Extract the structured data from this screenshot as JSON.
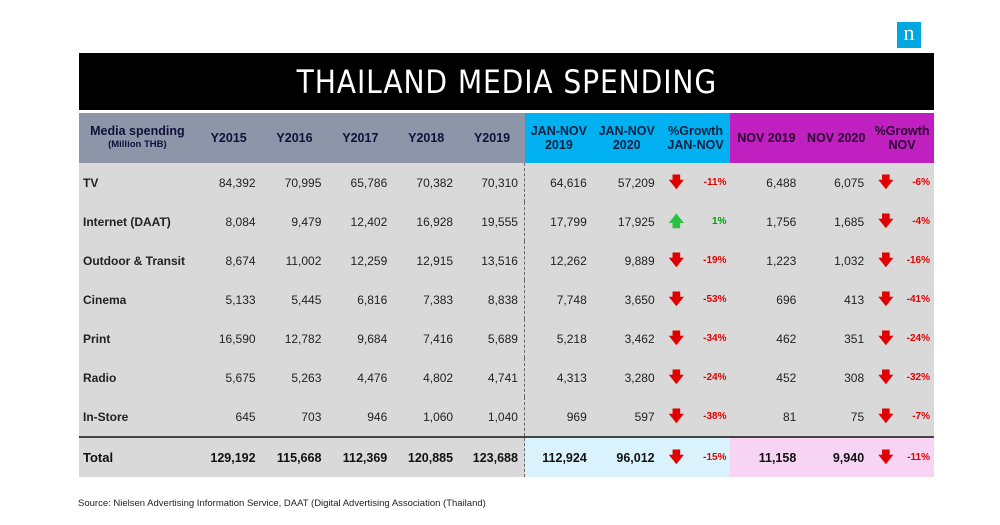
{
  "logo": "n",
  "title": "THAILAND MEDIA SPENDING",
  "header": {
    "media_line1": "Media spending",
    "media_line2": "(Million THB)",
    "y2015": "Y2015",
    "y2016": "Y2016",
    "y2017": "Y2017",
    "y2018": "Y2018",
    "y2019": "Y2019",
    "jn19_1": "JAN-NOV",
    "jn19_2": "2019",
    "jn20_1": "JAN-NOV",
    "jn20_2": "2020",
    "gjn_1": "%Growth",
    "gjn_2": "JAN-NOV",
    "nov19": "NOV 2019",
    "nov20": "NOV 2020",
    "gnov_1": "%Growth",
    "gnov_2": "NOV"
  },
  "rows": [
    {
      "name": "TV",
      "y2015": "84,392",
      "y2016": "70,995",
      "y2017": "65,786",
      "y2018": "70,382",
      "y2019": "70,310",
      "jn2019": "64,616",
      "jn2020": "57,209",
      "g1": "-11%",
      "g1_dir": "down",
      "nov2019": "6,488",
      "nov2020": "6,075",
      "g2": "-6%",
      "g2_dir": "down"
    },
    {
      "name": "Internet (DAAT)",
      "y2015": "8,084",
      "y2016": "9,479",
      "y2017": "12,402",
      "y2018": "16,928",
      "y2019": "19,555",
      "jn2019": "17,799",
      "jn2020": "17,925",
      "g1": "1%",
      "g1_dir": "up",
      "nov2019": "1,756",
      "nov2020": "1,685",
      "g2": "-4%",
      "g2_dir": "down"
    },
    {
      "name": "Outdoor & Transit",
      "y2015": "8,674",
      "y2016": "11,002",
      "y2017": "12,259",
      "y2018": "12,915",
      "y2019": "13,516",
      "jn2019": "12,262",
      "jn2020": "9,889",
      "g1": "-19%",
      "g1_dir": "down",
      "nov2019": "1,223",
      "nov2020": "1,032",
      "g2": "-16%",
      "g2_dir": "down"
    },
    {
      "name": "Cinema",
      "y2015": "5,133",
      "y2016": "5,445",
      "y2017": "6,816",
      "y2018": "7,383",
      "y2019": "8,838",
      "jn2019": "7,748",
      "jn2020": "3,650",
      "g1": "-53%",
      "g1_dir": "down",
      "nov2019": "696",
      "nov2020": "413",
      "g2": "-41%",
      "g2_dir": "down"
    },
    {
      "name": "Print",
      "y2015": "16,590",
      "y2016": "12,782",
      "y2017": "9,684",
      "y2018": "7,416",
      "y2019": "5,689",
      "jn2019": "5,218",
      "jn2020": "3,462",
      "g1": "-34%",
      "g1_dir": "down",
      "nov2019": "462",
      "nov2020": "351",
      "g2": "-24%",
      "g2_dir": "down"
    },
    {
      "name": "Radio",
      "y2015": "5,675",
      "y2016": "5,263",
      "y2017": "4,476",
      "y2018": "4,802",
      "y2019": "4,741",
      "jn2019": "4,313",
      "jn2020": "3,280",
      "g1": "-24%",
      "g1_dir": "down",
      "nov2019": "452",
      "nov2020": "308",
      "g2": "-32%",
      "g2_dir": "down"
    },
    {
      "name": "In-Store",
      "y2015": "645",
      "y2016": "703",
      "y2017": "946",
      "y2018": "1,060",
      "y2019": "1,040",
      "jn2019": "969",
      "jn2020": "597",
      "g1": "-38%",
      "g1_dir": "down",
      "nov2019": "81",
      "nov2020": "75",
      "g2": "-7%",
      "g2_dir": "down"
    }
  ],
  "total": {
    "name": "Total",
    "y2015": "129,192",
    "y2016": "115,668",
    "y2017": "112,369",
    "y2018": "120,885",
    "y2019": "123,688",
    "jn2019": "112,924",
    "jn2020": "96,012",
    "g1": "-15%",
    "g1_dir": "down",
    "nov2019": "11,158",
    "nov2020": "9,940",
    "g2": "-11%",
    "g2_dir": "down"
  },
  "source": "Source: Nielsen Advertising Information Service, DAAT  (Digital Advertising Association (Thailand)",
  "colors": {
    "grey": "#d9d9d9",
    "header_grey": "#8c96a8",
    "cyan": "#00b0f0",
    "magenta": "#c020c0",
    "down": "#e00000",
    "up": "#2cc040"
  }
}
